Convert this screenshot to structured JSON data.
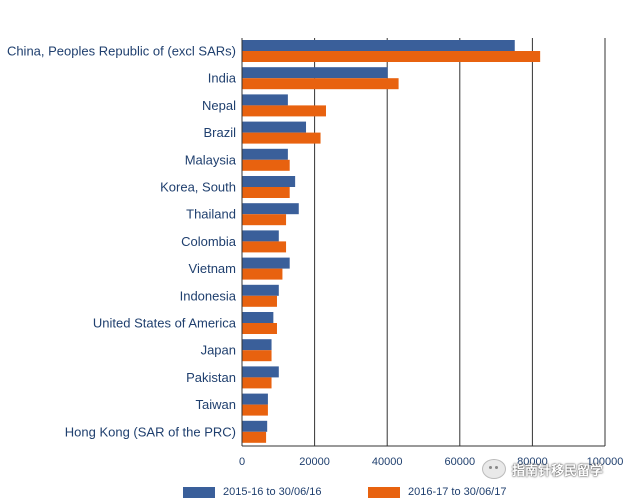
{
  "chart_data": {
    "type": "bar",
    "orientation": "horizontal",
    "categories": [
      "China, Peoples Republic of (excl SARs)",
      "India",
      "Nepal",
      "Brazil",
      "Malaysia",
      "Korea, South",
      "Thailand",
      "Colombia",
      "Vietnam",
      "Indonesia",
      "United States of America",
      "Japan",
      "Pakistan",
      "Taiwan",
      "Hong Kong (SAR of the PRC)"
    ],
    "series": [
      {
        "name": "2015-16 to 30/06/16",
        "color": "#3a5f9a",
        "values": [
          75000,
          40000,
          12500,
          17500,
          12500,
          14500,
          15500,
          10000,
          13000,
          10000,
          8500,
          8000,
          10000,
          7000,
          6800
        ]
      },
      {
        "name": "2016-17 to 30/06/17",
        "color": "#e8620f",
        "values": [
          82000,
          43000,
          23000,
          21500,
          13000,
          13000,
          12000,
          12000,
          11000,
          9500,
          9500,
          8000,
          8000,
          7000,
          6500
        ]
      }
    ],
    "xlim": [
      0,
      100000
    ],
    "xticks": [
      "0",
      "20000",
      "40000",
      "60000",
      "80000",
      "100000"
    ],
    "grid": true,
    "legend": "bottom"
  },
  "watermark": {
    "text": "指南针移民留学",
    "icon": "wechat-icon"
  }
}
